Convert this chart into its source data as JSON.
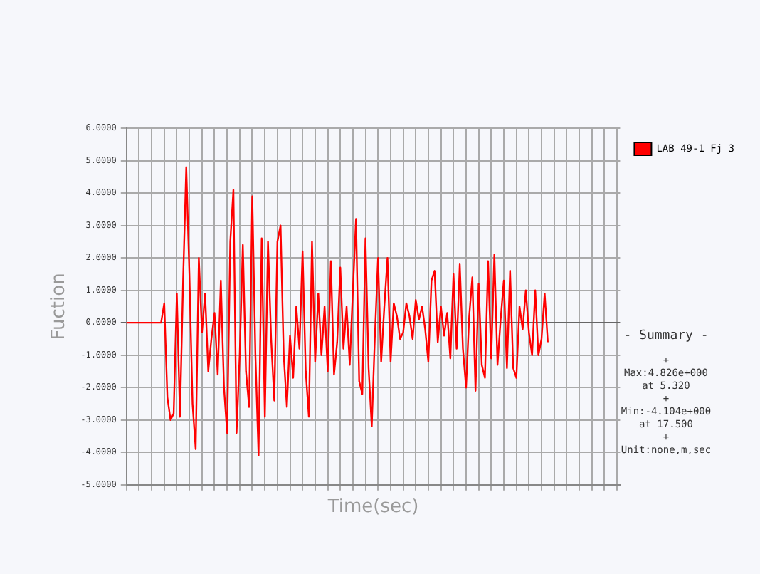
{
  "chart_data": {
    "type": "line",
    "xlabel": "Time(sec)",
    "ylabel": "Fuction",
    "categories": [
      null,
      null,
      null,
      null,
      null,
      null,
      null,
      null,
      null,
      null,
      null,
      null,
      null,
      null,
      null,
      null,
      null,
      null,
      null,
      null,
      null,
      null,
      null,
      null,
      null,
      null,
      null,
      null,
      null,
      null,
      null,
      null,
      null,
      null,
      null,
      null,
      null,
      null,
      null,
      null,
      null,
      null,
      null,
      null,
      null,
      null,
      null,
      null,
      null,
      null,
      null,
      null,
      null,
      null,
      null,
      null,
      null,
      null,
      null,
      null,
      null,
      null,
      null,
      null,
      null,
      null,
      null,
      null,
      null,
      null,
      null,
      null,
      null,
      null,
      null,
      null,
      null,
      null,
      null,
      null,
      null,
      null,
      null,
      null,
      null,
      null,
      null,
      null,
      null,
      null,
      null,
      null,
      null,
      null,
      null,
      null,
      null,
      null,
      null,
      null,
      null,
      null,
      null,
      null,
      null,
      null,
      null,
      null,
      null,
      null,
      null,
      null,
      null,
      null,
      null,
      null,
      null,
      null,
      null,
      null,
      null,
      null,
      null,
      null,
      null,
      null,
      null,
      null,
      null,
      null,
      null,
      null,
      null,
      null,
      null,
      null,
      null,
      null,
      null,
      null,
      null,
      null,
      null,
      null,
      null,
      null,
      null,
      null,
      null,
      null,
      null,
      null,
      null,
      null,
      null,
      null,
      null,
      null
    ],
    "series": [
      {
        "name": "LAB 49-1 Fj 3",
        "color": "#ff0000",
        "values": [
          0,
          0,
          0,
          0,
          0,
          0,
          0,
          0,
          0,
          0,
          0,
          0,
          0.6,
          -2.3,
          -3,
          -2.8,
          0.9,
          -2.9,
          1.3,
          4.8,
          1.5,
          -2.5,
          -3.9,
          2.0,
          -0.3,
          0.9,
          -1.5,
          -0.5,
          0.3,
          -1.6,
          1.3,
          -2,
          -3.4,
          2.5,
          4.1,
          -3.4,
          -1,
          2.4,
          -1.5,
          -2.6,
          3.9,
          -1,
          -4.1,
          2.6,
          -2.9,
          2.5,
          -0.5,
          -2.4,
          2.5,
          3.0,
          -1,
          -2.6,
          -0.4,
          -1.7,
          0.5,
          -0.8,
          2.2,
          -1.5,
          -2.9,
          2.5,
          -1.2,
          0.9,
          -1,
          0.5,
          -1.5,
          1.9,
          -1.6,
          -0.6,
          1.7,
          -0.8,
          0.5,
          -1.3,
          1.0,
          3.2,
          -1.8,
          -2.2,
          2.6,
          -1.4,
          -3.2,
          -0.4,
          2.0,
          -1.2,
          0.5,
          2.0,
          -1.2,
          0.6,
          0.2,
          -0.5,
          -0.3,
          0.6,
          0.2,
          -0.5,
          0.7,
          0.1,
          0.5,
          -0.2,
          -1.2,
          1.3,
          1.6,
          -0.6,
          0.5,
          -0.4,
          0.3,
          -1.1,
          1.5,
          -0.8,
          1.8,
          -0.8,
          -2.0,
          0.2,
          1.4,
          -2.1,
          1.2,
          -1.3,
          -1.7,
          1.9,
          -1.1,
          2.1,
          -1.3,
          0.1,
          1.3,
          -1.4,
          1.6,
          -1.4,
          -1.7,
          0.5,
          -0.2,
          1.0,
          -0.3,
          -1.0,
          1.0,
          -1.0,
          -0.5,
          0.9,
          -0.6,
          null,
          null,
          null,
          null,
          null,
          null,
          null,
          null,
          null,
          null,
          null,
          null,
          null,
          null,
          null,
          null,
          null,
          null,
          null,
          null,
          null,
          null,
          null
        ]
      }
    ],
    "ylim": [
      -5,
      6
    ],
    "yticks": [
      {
        "value": -5,
        "label": "-5.0000"
      },
      {
        "value": -4,
        "label": "-4.0000"
      },
      {
        "value": -3,
        "label": "-3.0000"
      },
      {
        "value": -2,
        "label": "-2.0000"
      },
      {
        "value": -1,
        "label": "-1.0000"
      },
      {
        "value": 0,
        "label": "0.0000"
      },
      {
        "value": 1,
        "label": "1.0000"
      },
      {
        "value": 2,
        "label": "2.0000"
      },
      {
        "value": 3,
        "label": "3.0000"
      },
      {
        "value": 4,
        "label": "4.0000"
      },
      {
        "value": 5,
        "label": "5.0000"
      },
      {
        "value": 6,
        "label": "6.0000"
      }
    ],
    "grid": true,
    "legend": "top right",
    "tick_labels": "y",
    "marker": "none",
    "line_style": "solid",
    "annotations": [
      "- Summary -",
      "+",
      "Max:4.826e+000",
      "at  5.320",
      "+",
      "Min:-4.104e+000",
      "at 17.500",
      "+",
      "Unit:none,m,sec"
    ]
  }
}
